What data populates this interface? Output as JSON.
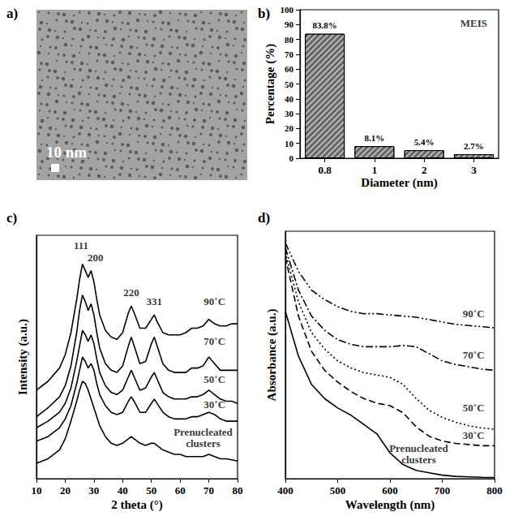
{
  "chart_data": [
    {
      "type": "image",
      "title": "a)",
      "annotations": [
        {
          "text": "10 nm"
        }
      ]
    },
    {
      "type": "bar",
      "title": "b)",
      "x_label": "Diameter (nm)",
      "y_label": "Percentage (%)",
      "categories": [
        "0.8",
        "1",
        "2",
        "3"
      ],
      "values": [
        83.8,
        8.1,
        5.4,
        2.7
      ],
      "value_labels": [
        "83.8%",
        "8.1%",
        "5.4%",
        "2.7%"
      ],
      "data_labels": true,
      "color": "#666666",
      "ylim": [
        0,
        100
      ],
      "yticks": [
        0,
        10,
        20,
        30,
        40,
        50,
        60,
        70,
        80,
        90,
        100
      ],
      "grid": false,
      "annotations": [
        {
          "text": "MEIS",
          "x": "3",
          "y": 91
        }
      ]
    },
    {
      "type": "line",
      "title": "c)",
      "x_label": "2 theta (°)",
      "y_label": "Intensity (a.u.)",
      "x": [
        10,
        14,
        18,
        20,
        22,
        24,
        25,
        26,
        27,
        28,
        29,
        30,
        31,
        32,
        34,
        36,
        38,
        40,
        42,
        43,
        44,
        46,
        48,
        50,
        51,
        52,
        54,
        56,
        58,
        60,
        62,
        64,
        66,
        68,
        70,
        72,
        74,
        76,
        78,
        80
      ],
      "series": [
        {
          "name": "Prenucleated clusters",
          "color": "#000000",
          "line_style": "solid",
          "values": [
            0.7,
            0.9,
            1.3,
            1.8,
            2.6,
            3.5,
            4.0,
            4.4,
            4.3,
            4.0,
            3.6,
            3.2,
            2.8,
            2.4,
            1.9,
            1.6,
            1.5,
            1.6,
            1.8,
            1.9,
            1.8,
            1.6,
            1.5,
            1.6,
            1.6,
            1.5,
            1.3,
            1.2,
            1.1,
            1.1,
            1.0,
            1.0,
            1.0,
            1.0,
            1.1,
            1.0,
            0.9,
            0.9,
            0.85,
            0.8
          ]
        },
        {
          "name": "30˚C",
          "color": "#000000",
          "line_style": "solid",
          "values": [
            1.7,
            1.9,
            2.3,
            2.7,
            3.3,
            4.3,
            4.9,
            5.5,
            5.3,
            5.0,
            5.2,
            4.9,
            4.3,
            3.8,
            3.3,
            3.0,
            2.9,
            3.0,
            3.5,
            3.7,
            3.5,
            3.0,
            3.0,
            3.4,
            3.6,
            3.4,
            3.0,
            2.8,
            2.7,
            2.7,
            2.7,
            2.8,
            2.8,
            2.9,
            3.0,
            2.9,
            2.7,
            2.6,
            2.6,
            2.6
          ]
        },
        {
          "name": "50˚C",
          "color": "#000000",
          "line_style": "solid",
          "values": [
            2.3,
            2.6,
            3.0,
            3.4,
            4.1,
            5.3,
            6.0,
            6.7,
            6.5,
            6.2,
            6.5,
            6.1,
            5.4,
            4.8,
            4.2,
            3.9,
            3.8,
            4.0,
            4.6,
            4.9,
            4.6,
            4.0,
            4.1,
            4.6,
            4.8,
            4.5,
            3.9,
            3.7,
            3.6,
            3.6,
            3.6,
            3.7,
            3.7,
            3.8,
            4.0,
            3.8,
            3.6,
            3.5,
            3.5,
            3.4
          ]
        },
        {
          "name": "70˚C",
          "color": "#000000",
          "line_style": "solid",
          "values": [
            2.8,
            3.2,
            3.7,
            4.2,
            5.1,
            6.6,
            7.6,
            8.3,
            8.0,
            7.6,
            7.9,
            7.4,
            6.6,
            5.9,
            5.2,
            4.9,
            4.8,
            5.1,
            6.0,
            6.4,
            6.0,
            5.2,
            5.3,
            6.1,
            6.4,
            6.0,
            5.2,
            4.9,
            4.8,
            4.8,
            4.8,
            5.0,
            5.0,
            5.1,
            5.5,
            5.2,
            4.9,
            4.9,
            4.9,
            4.9
          ]
        },
        {
          "name": "90˚C",
          "color": "#000000",
          "line_style": "solid",
          "values": [
            4.0,
            4.4,
            5.0,
            5.6,
            6.6,
            8.1,
            9.0,
            9.7,
            9.4,
            9.1,
            9.4,
            8.9,
            8.1,
            7.4,
            6.7,
            6.4,
            6.3,
            6.6,
            7.5,
            7.8,
            7.5,
            6.8,
            6.8,
            7.2,
            7.4,
            7.1,
            6.6,
            6.5,
            6.5,
            6.5,
            6.6,
            6.8,
            6.8,
            6.9,
            7.2,
            7.0,
            6.9,
            6.9,
            7.0,
            7.0
          ]
        }
      ],
      "xlim": [
        10,
        80
      ],
      "xticks": [
        10,
        20,
        30,
        40,
        50,
        60,
        70,
        80
      ],
      "ylim": [
        0,
        11
      ],
      "tick_labels": "x",
      "grid": false,
      "annotations": [
        {
          "text": "111",
          "x": 25.5,
          "y": 10.55
        },
        {
          "text": "200",
          "x": 30.5,
          "y": 10.0
        },
        {
          "text": "220",
          "x": 43,
          "y": 8.4
        },
        {
          "text": "331",
          "x": 51,
          "y": 8.0
        },
        {
          "text": "90˚C",
          "x": 72,
          "y": 8.0
        },
        {
          "text": "70˚C",
          "x": 72,
          "y": 6.2
        },
        {
          "text": "50˚C",
          "x": 72,
          "y": 4.5
        },
        {
          "text": "30˚C",
          "x": 72,
          "y": 3.35
        },
        {
          "text": "Prenucleated\nclusters",
          "x": 68,
          "y": 1.85
        }
      ]
    },
    {
      "type": "line",
      "title": "d)",
      "x_label": "Wavelength (nm)",
      "y_label": "Absorbance (a.u.)",
      "x": [
        400,
        425,
        450,
        475,
        500,
        525,
        550,
        575,
        600,
        625,
        650,
        675,
        700,
        725,
        750,
        775,
        800
      ],
      "series": [
        {
          "name": "Prenucleated clusters",
          "color": "#000000",
          "line_style": "solid",
          "values": [
            7.1,
            5.2,
            4.0,
            3.4,
            3.0,
            2.7,
            2.3,
            1.9,
            1.1,
            0.6,
            0.35,
            0.25,
            0.15,
            0.1,
            0.08,
            0.06,
            0.05
          ]
        },
        {
          "name": "30˚C",
          "color": "#000000",
          "line_style": "dashed",
          "values": [
            9.4,
            6.9,
            5.4,
            4.6,
            4.1,
            3.7,
            3.4,
            3.2,
            3.1,
            2.8,
            2.2,
            1.8,
            1.6,
            1.5,
            1.45,
            1.4,
            1.4
          ]
        },
        {
          "name": "50˚C",
          "color": "#000000",
          "line_style": "dotted",
          "values": [
            9.6,
            7.5,
            6.2,
            5.5,
            5.0,
            4.7,
            4.5,
            4.4,
            4.3,
            4.0,
            3.4,
            2.9,
            2.6,
            2.4,
            2.25,
            2.15,
            2.1
          ]
        },
        {
          "name": "70˚C",
          "color": "#000000",
          "line_style": "dashdot",
          "values": [
            9.8,
            8.0,
            6.9,
            6.3,
            5.9,
            5.7,
            5.6,
            5.6,
            5.6,
            5.65,
            5.6,
            5.3,
            5.0,
            4.85,
            4.75,
            4.65,
            4.6
          ]
        },
        {
          "name": "90˚C",
          "color": "#000000",
          "line_style": "dashdotdot",
          "values": [
            10.0,
            8.8,
            8.0,
            7.6,
            7.3,
            7.1,
            7.0,
            7.0,
            6.95,
            6.9,
            6.85,
            6.75,
            6.65,
            6.55,
            6.5,
            6.45,
            6.4
          ]
        }
      ],
      "xlim": [
        400,
        800
      ],
      "xticks": [
        400,
        500,
        600,
        700,
        800
      ],
      "ylim": [
        0,
        10.5
      ],
      "tick_labels": "x",
      "grid": false,
      "annotations": [
        {
          "text": "90˚C",
          "x": 760,
          "y": 7.0
        },
        {
          "text": "70˚C",
          "x": 760,
          "y": 5.25
        },
        {
          "text": "50˚C",
          "x": 760,
          "y": 3.0
        },
        {
          "text": "30˚C",
          "x": 760,
          "y": 1.85
        },
        {
          "text": "Prenucleated\nclusters",
          "x": 655,
          "y": 1.05
        }
      ]
    }
  ]
}
